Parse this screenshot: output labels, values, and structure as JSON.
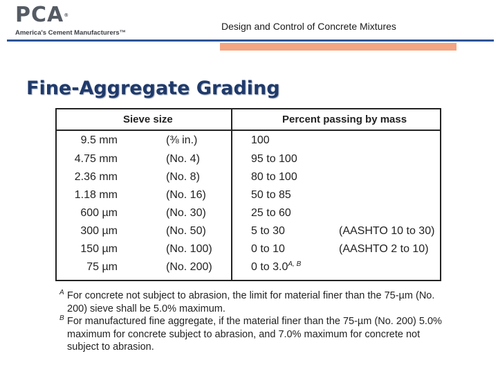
{
  "header": {
    "logo_text": "PCA",
    "logo_reg": "®",
    "logo_tagline": "America's Cement Manufacturers™",
    "title": "Design and Control of Concrete Mixtures"
  },
  "slide": {
    "title": "Fine-Aggregate Grading"
  },
  "table": {
    "headers": {
      "sieve": "Sieve size",
      "passing": "Percent passing by mass"
    },
    "rows": [
      {
        "metric": "9.5 mm",
        "us": "(⅜ in.)",
        "passing": "100",
        "aashto": ""
      },
      {
        "metric": "4.75 mm",
        "us": "(No. 4)",
        "passing": "95 to 100",
        "aashto": ""
      },
      {
        "metric": "2.36 mm",
        "us": "(No. 8)",
        "passing": "80 to 100",
        "aashto": ""
      },
      {
        "metric": "1.18 mm",
        "us": "(No. 16)",
        "passing": "50 to 85",
        "aashto": ""
      },
      {
        "metric": "600 µm",
        "us": "(No. 30)",
        "passing": "25 to 60",
        "aashto": ""
      },
      {
        "metric": "300 µm",
        "us": "(No. 50)",
        "passing": "5 to 30",
        "aashto": "(AASHTO 10 to 30)"
      },
      {
        "metric": "150 µm",
        "us": "(No. 100)",
        "passing": "0 to 10",
        "aashto": "(AASHTO 2 to 10)"
      },
      {
        "metric": "75 µm",
        "us": "(No. 200)",
        "passing": "0 to 3.0",
        "aashto": "",
        "passing_sup": "A, B"
      }
    ]
  },
  "notes": [
    {
      "marker": "A",
      "text": "For concrete not subject to abrasion, the limit for material finer than the 75-µm (No. 200) sieve shall be 5.0% maximum."
    },
    {
      "marker": "B",
      "text": "For manufactured fine aggregate, if the material finer than the 75-µm (No. 200) 5.0% maximum for concrete subject to abrasion, and 7.0% maximum for concrete not subject to abrasion."
    }
  ],
  "colors": {
    "title": "#1f3a6b",
    "rule_blue": "#2f5597",
    "rule_orange": "#f4a582"
  }
}
